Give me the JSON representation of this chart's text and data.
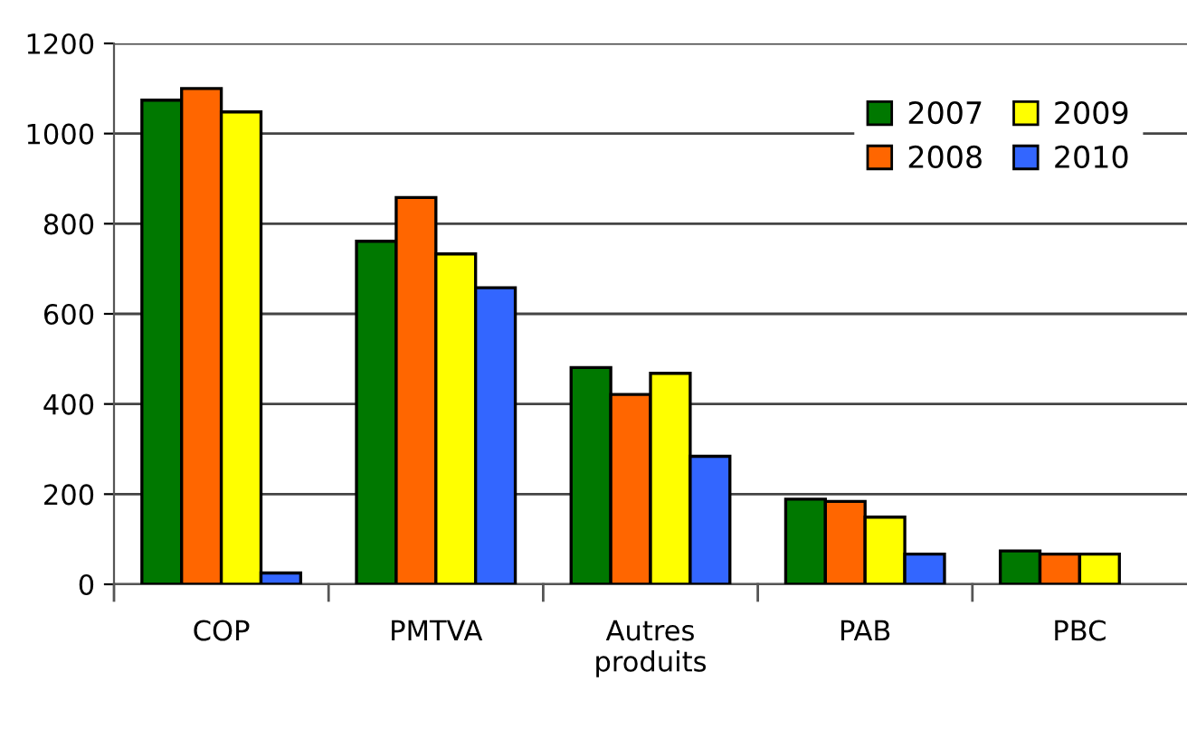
{
  "chart_data": {
    "type": "bar",
    "categories": [
      "COP",
      "PMTVA",
      "Autres\nproduits",
      "PAB",
      "PBC"
    ],
    "series": [
      {
        "name": "2007",
        "color": "#007800",
        "values": [
          1074,
          761,
          481,
          189,
          74
        ]
      },
      {
        "name": "2008",
        "color": "#ff6600",
        "values": [
          1100,
          858,
          421,
          184,
          67
        ]
      },
      {
        "name": "2009",
        "color": "#ffff00",
        "values": [
          1048,
          733,
          468,
          149,
          67
        ]
      },
      {
        "name": "2010",
        "color": "#3366ff",
        "values": [
          25,
          658,
          284,
          67,
          null
        ]
      }
    ],
    "ylim": [
      0,
      1200
    ],
    "yticks": [
      0,
      200,
      400,
      600,
      800,
      1000,
      1200
    ],
    "grid": "y",
    "legend": "top right"
  }
}
